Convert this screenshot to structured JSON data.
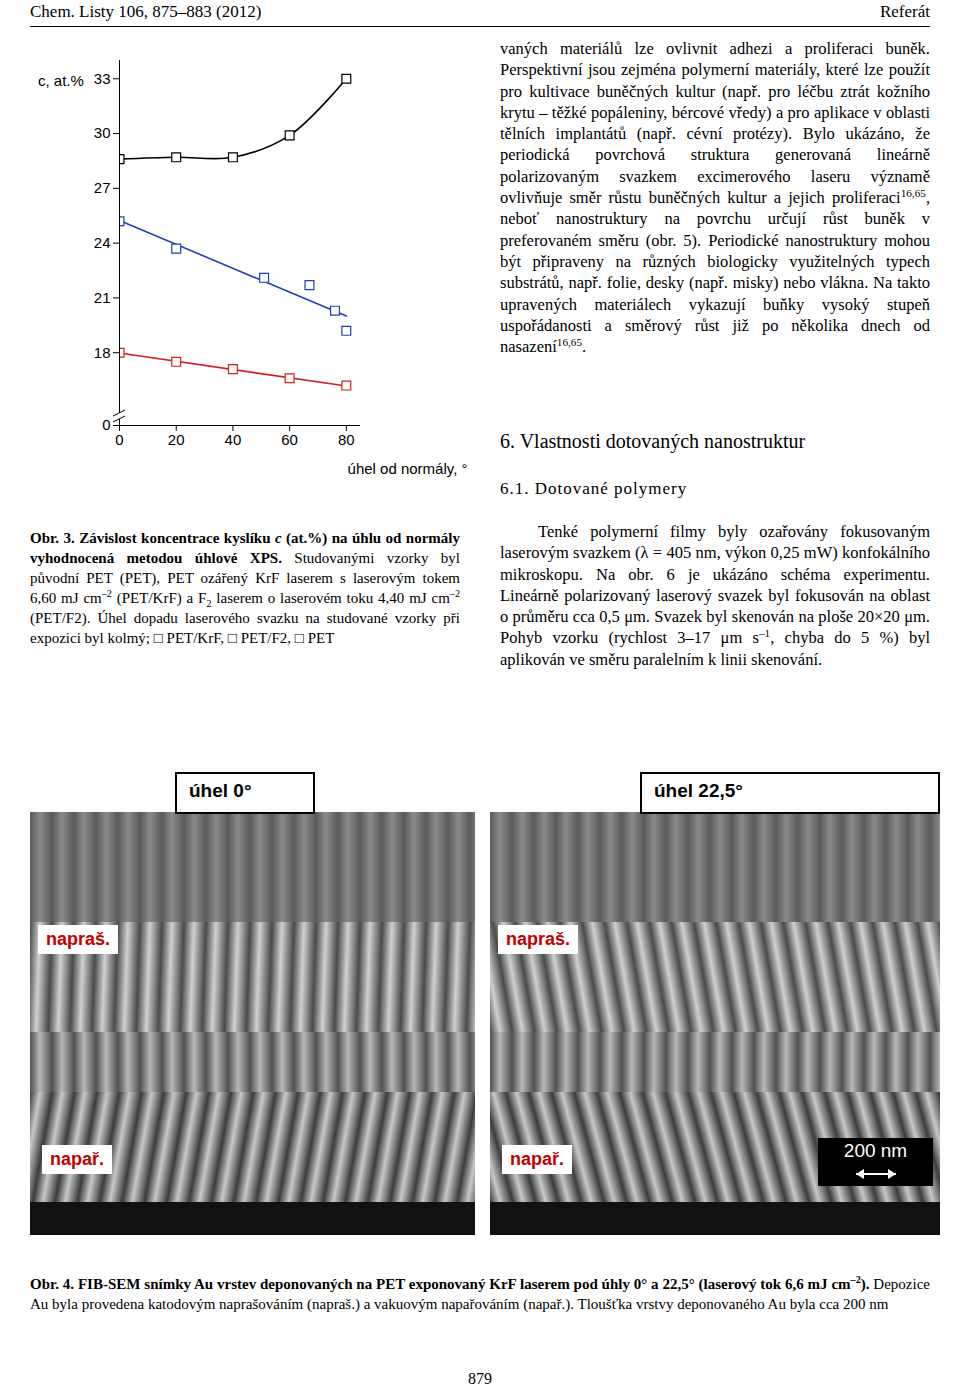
{
  "header": {
    "left": "Chem. Listy 106, 875–883 (2012)",
    "right": "Referát"
  },
  "chart_data": {
    "type": "scatter",
    "xlabel": "úhel od normály, °",
    "ylabel": "c, at.%",
    "xlim": [
      0,
      85
    ],
    "xticks": [
      0,
      20,
      40,
      60,
      80
    ],
    "ylim": [
      0,
      34
    ],
    "yticks": [
      0,
      18,
      21,
      24,
      27,
      30,
      33
    ],
    "grid": false,
    "series": [
      {
        "name": "PET/KrF",
        "type": "line",
        "color": "#000000",
        "marker": "square",
        "x": [
          0,
          20,
          40,
          60,
          80
        ],
        "values": [
          28.6,
          28.7,
          28.7,
          29.9,
          33.0
        ]
      },
      {
        "name": "PET/F2",
        "type": "regression",
        "color": "#1f3fbf",
        "marker": "square",
        "x": [
          0,
          20,
          51,
          67,
          76,
          80
        ],
        "values": [
          25.2,
          23.7,
          22.1,
          21.7,
          20.3,
          19.2
        ]
      },
      {
        "name": "PET",
        "type": "regression",
        "color": "#d02020",
        "marker": "square",
        "x": [
          0,
          20,
          40,
          60,
          80
        ],
        "values": [
          18.0,
          17.5,
          17.1,
          16.6,
          16.2
        ]
      }
    ]
  },
  "figure3_caption": [
    {
      "b": [
        "Obr. 3. Závislost koncentrace kyslíku ",
        {
          "i": "c"
        },
        " (at.%) na úhlu od normály vyhodnocená metodou úhlové XPS."
      ]
    },
    " Studovanými vzorky byl původní PET (PET), PET ozářený KrF laserem s laserovým tokem 6,60 mJ cm",
    {
      "sup": "–2"
    },
    " (PET/KrF) a F",
    {
      "sub": "2"
    },
    " laserem o laserovém toku 4,40 mJ cm",
    {
      "sup": "–2"
    },
    " (PET/F2). Úhel dopadu laserového svazku na studované vzorky při expozici byl kolmý; □ PET/KrF, □ PET/F2, □ PET"
  ],
  "right_column": [
    [
      "vaných materiálů lze ovlivnit adhezi a proliferaci buněk. Perspektivní jsou zejména polymerní materiály, které lze použít pro kultivace buněčných kultur (např. pro léčbu ztrát kožního krytu – těžké popáleniny, bércové vředy) a pro aplikace v oblasti tělních implantátů (např. cévní protézy). Bylo ukázáno, že periodická povrchová struktura generovaná lineárně polarizovaným svazkem excimerového laseru významě ovlivňuje směr růstu buněčných kultur a jejich proliferaci",
      {
        "sup": "16,65"
      },
      ", neboť nanostruktury na povrchu určují růst buněk v preferovaném směru (obr. 5). Periodické nanostruktury mohou být připraveny na různých biologicky využitelných typech substrátů, např. folie, desky (např. misky) nebo vlákna. Na takto upravených materiálech vykazují buňky vysoký stupeň uspořádanosti a směrový růst již po několika dnech od nasazení",
      {
        "sup": "16,65"
      },
      "."
    ]
  ],
  "section": "6. Vlastnosti dotovaných nanostruktur",
  "subsection": "6.1. Dotované polymery",
  "section_text": [
    [
      "Tenké polymerní filmy byly ozařovány fokusovaným laserovým svazkem (λ = 405 nm, výkon 0,25 mW) konfokálního mikroskopu. Na obr. 6 je ukázáno schéma experimentu. Lineárně polarizovaný laserový svazek byl fokusován na oblast o průměru cca 0,5 μm. Svazek byl skenován na ploše 20×20 μm. Pohyb vzorku (rychlost 3–17 μm s",
      {
        "sup": "–1"
      },
      ", chyba do 5 %) byl aplikován ve směru paralelním k linii skenování."
    ]
  ],
  "figure4": {
    "panels": [
      {
        "angle_label": "úhel 0°",
        "top_label": "napraš.",
        "bottom_label": "napař."
      },
      {
        "angle_label": "úhel 22,5°",
        "top_label": "napraš.",
        "bottom_label": "napař.",
        "scale_bar": "200 nm"
      }
    ],
    "caption": [
      {
        "b": [
          "Obr. 4. FIB-SEM snímky Au vrstev deponovaných na PET exponovaný KrF laserem pod úhly 0° a 22,5° (laserový tok 6,6 mJ cm",
          {
            "sup": "–2"
          },
          ")."
        ]
      },
      " Depozice Au byla provedena katodovým naprašováním (napraš.) a vakuovým napařováním (napař.). Tloušťka vrstvy deponovaného Au byla cca 200 nm"
    ]
  },
  "page_number": "879"
}
